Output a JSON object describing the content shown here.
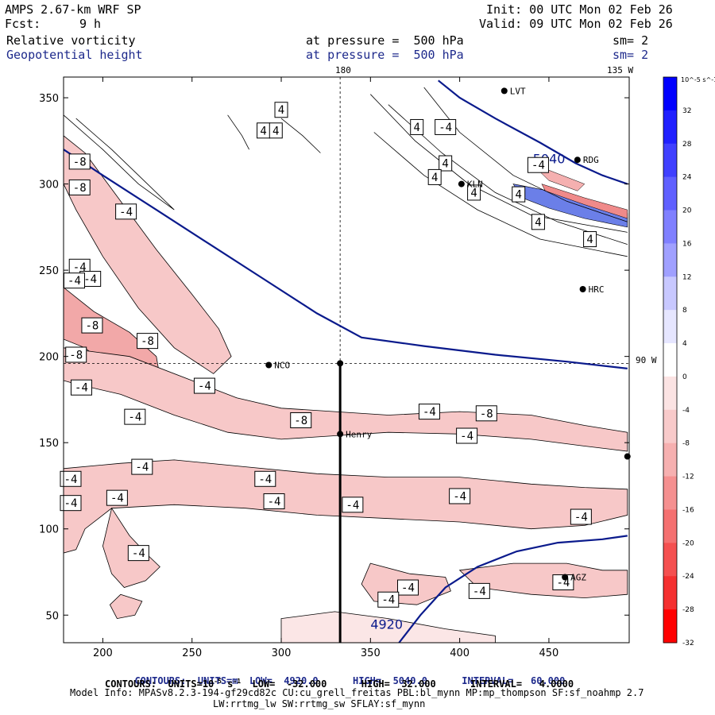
{
  "header": {
    "model": "AMPS 2.67-km WRF SP",
    "fcst_label": "Fcst:",
    "fcst_value": "9 h",
    "init": "Init: 00 UTC Mon 02 Feb 26",
    "valid": "Valid: 09 UTC Mon 02 Feb 26",
    "field1": "Relative vorticity",
    "field2": "Geopotential height",
    "pressure1": "at pressure =  500 hPa",
    "pressure2": "at pressure =  500 hPa",
    "sm1": "sm= 2",
    "sm2": "sm= 2"
  },
  "chart_data": {
    "type": "contour",
    "x_ticks": [
      200,
      250,
      300,
      350,
      400,
      450
    ],
    "y_ticks": [
      50,
      100,
      150,
      200,
      250,
      300,
      350
    ],
    "xlim": [
      178,
      495
    ],
    "ylim": [
      34,
      362
    ],
    "lon_labels": {
      "top_180": "180",
      "top_135w": "135 W",
      "right_90w": "90 W"
    },
    "stations": [
      {
        "name": "LVT",
        "x": 425,
        "y": 354
      },
      {
        "name": "RDG",
        "x": 466,
        "y": 314
      },
      {
        "name": "KLN",
        "x": 401,
        "y": 300
      },
      {
        "name": "HRC",
        "x": 469,
        "y": 239
      },
      {
        "name": "NCO",
        "x": 293,
        "y": 195
      },
      {
        "name": "Henry",
        "x": 333,
        "y": 155
      },
      {
        "name": "AGZ",
        "x": 459,
        "y": 72
      },
      {
        "name": "",
        "x": 333,
        "y": 196
      },
      {
        "name": "",
        "x": 494,
        "y": 142
      }
    ],
    "height_contours": [
      {
        "label": "5040",
        "points": [
          [
            178,
            320
          ],
          [
            200,
            305
          ],
          [
            230,
            285
          ],
          [
            260,
            265
          ],
          [
            290,
            245
          ],
          [
            320,
            225
          ],
          [
            345,
            211
          ],
          [
            380,
            206
          ],
          [
            420,
            201
          ],
          [
            460,
            197
          ],
          [
            494,
            193
          ]
        ]
      },
      {
        "label": "5040",
        "points": [
          [
            388,
            360
          ],
          [
            400,
            350
          ],
          [
            420,
            338
          ],
          [
            445,
            324
          ],
          [
            465,
            312
          ],
          [
            480,
            305
          ],
          [
            494,
            300
          ]
        ]
      },
      {
        "label": "4920",
        "points": [
          [
            366,
            34
          ],
          [
            378,
            50
          ],
          [
            392,
            66
          ],
          [
            410,
            78
          ],
          [
            432,
            87
          ],
          [
            455,
            92
          ],
          [
            480,
            94
          ],
          [
            494,
            96
          ]
        ]
      }
    ],
    "vorticity_labels": [
      {
        "v": "4",
        "x": 300,
        "y": 343
      },
      {
        "v": "4",
        "x": 290,
        "y": 331
      },
      {
        "v": "4",
        "x": 297,
        "y": 331
      },
      {
        "v": "4",
        "x": 376,
        "y": 333
      },
      {
        "v": "-4",
        "x": 392,
        "y": 333
      },
      {
        "v": "4",
        "x": 392,
        "y": 312
      },
      {
        "v": "4",
        "x": 386,
        "y": 304
      },
      {
        "v": "-4",
        "x": 444,
        "y": 311
      },
      {
        "v": "4",
        "x": 408,
        "y": 295
      },
      {
        "v": "4",
        "x": 433,
        "y": 294
      },
      {
        "v": "4",
        "x": 444,
        "y": 278
      },
      {
        "v": "4",
        "x": 473,
        "y": 268
      },
      {
        "v": "-8",
        "x": 187,
        "y": 313
      },
      {
        "v": "-8",
        "x": 187,
        "y": 298
      },
      {
        "v": "-4",
        "x": 187,
        "y": 252
      },
      {
        "v": "-4",
        "x": 193,
        "y": 245
      },
      {
        "v": "-4",
        "x": 184,
        "y": 244
      },
      {
        "v": "-8",
        "x": 194,
        "y": 218
      },
      {
        "v": "-8",
        "x": 225,
        "y": 209
      },
      {
        "v": "-8",
        "x": 185,
        "y": 201
      },
      {
        "v": "-4",
        "x": 188,
        "y": 182
      },
      {
        "v": "-4",
        "x": 213,
        "y": 284
      },
      {
        "v": "-4",
        "x": 257,
        "y": 183
      },
      {
        "v": "-4",
        "x": 218,
        "y": 165
      },
      {
        "v": "-8",
        "x": 311,
        "y": 163
      },
      {
        "v": "-4",
        "x": 383,
        "y": 168
      },
      {
        "v": "-8",
        "x": 415,
        "y": 167
      },
      {
        "v": "-4",
        "x": 404,
        "y": 154
      },
      {
        "v": "-4",
        "x": 222,
        "y": 136
      },
      {
        "v": "-4",
        "x": 182,
        "y": 129
      },
      {
        "v": "-4",
        "x": 291,
        "y": 129
      },
      {
        "v": "-4",
        "x": 182,
        "y": 115
      },
      {
        "v": "-4",
        "x": 208,
        "y": 118
      },
      {
        "v": "-4",
        "x": 296,
        "y": 116
      },
      {
        "v": "-4",
        "x": 340,
        "y": 114
      },
      {
        "v": "-4",
        "x": 400,
        "y": 119
      },
      {
        "v": "-4",
        "x": 468,
        "y": 107
      },
      {
        "v": "-4",
        "x": 220,
        "y": 86
      },
      {
        "v": "-4",
        "x": 371,
        "y": 66
      },
      {
        "v": "-4",
        "x": 360,
        "y": 59
      },
      {
        "v": "-4",
        "x": 411,
        "y": 64
      },
      {
        "v": "-4",
        "x": 458,
        "y": 69
      }
    ],
    "colorbar": {
      "unit": "10^-5 s^-1",
      "levels": [
        32,
        28,
        24,
        20,
        16,
        12,
        8,
        4,
        0,
        -4,
        -8,
        -12,
        -16,
        -20,
        -24,
        -28,
        -32
      ],
      "pos_colors": [
        "#0000ff",
        "#2020ff",
        "#4040ff",
        "#6060ff",
        "#8080ff",
        "#a0a0ff",
        "#c8c8ff",
        "#e6e6ff",
        "#ffffff"
      ],
      "neg_colors": [
        "#ffffff",
        "#fbe3e3",
        "#f8caca",
        "#f6b0b0",
        "#f59090",
        "#f47070",
        "#f45050",
        "#f43030",
        "#ff0000"
      ]
    }
  },
  "footer": {
    "line1_a": "CONTOURS:  UNITS=m  LOW=  4920.0",
    "line1_b": "HIGH=  5040.0",
    "line1_c": "INTERVAL=   60.000",
    "line2_a": "CONTOURS:  UNITS=10",
    "line2_sup": "-5",
    "line2_b": " s",
    "line2_sup2": "-1",
    "line2_c": "  LOW=  -32.000",
    "line2_d": "HIGH=  32.000",
    "line2_e": "INTERVAL=   4.0000",
    "model_info": "Model Info: MPASv8.2.3-194-gf29cd82c CU:cu_grell_freitas PBL:bl_mynn MP:mp_thompson SF:sf_noahmp 2.7",
    "model_info2": "LW:rrtmg_lw SW:rrtmg_sw SFLAY:sf_mynn"
  },
  "colors": {
    "height": "#0a1a8c",
    "neg_fill": "#f7c8c8",
    "pos_fill": "#7a8cf0"
  }
}
